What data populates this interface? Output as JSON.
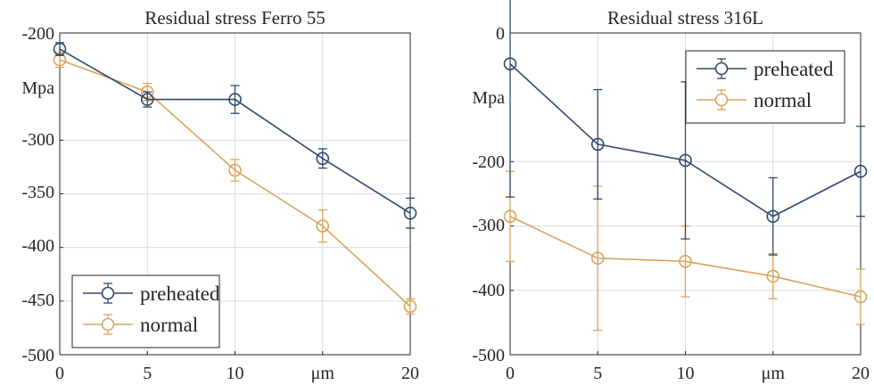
{
  "colors": {
    "preheated": "#2f4a6e",
    "normal": "#d9a35e",
    "grid": "#dcdcdc",
    "axis": "#262626"
  },
  "chart_data": [
    {
      "type": "line",
      "title": "Residual stress Ferro 55",
      "ylabel": "Mpa",
      "xlabel": "",
      "x": [
        0,
        5,
        10,
        15,
        20
      ],
      "xtick_labels": [
        "0",
        "5",
        "10",
        "μm",
        "20"
      ],
      "ylim": [
        -500,
        -200
      ],
      "yticks": [
        -200,
        -300,
        -350,
        -400,
        -450,
        -500
      ],
      "ytick_labels": [
        "-200",
        "Mpa",
        "-300",
        "-350",
        "-400",
        "-450",
        "-500"
      ],
      "grid": true,
      "legend": "bottom-left",
      "series": [
        {
          "name": "preheated",
          "values": [
            -215,
            -262,
            -262,
            -317,
            -368
          ],
          "errors": [
            6,
            7,
            13,
            9,
            14
          ]
        },
        {
          "name": "normal",
          "values": [
            -225,
            -255,
            -328,
            -380,
            -455
          ],
          "errors": [
            7,
            8,
            10,
            15,
            7
          ]
        }
      ]
    },
    {
      "type": "line",
      "title": "Residual stress 316L",
      "ylabel": "Mpa",
      "xlabel": "",
      "x": [
        0,
        5,
        10,
        15,
        20
      ],
      "xtick_labels": [
        "0",
        "5",
        "10",
        "μm",
        "20"
      ],
      "ylim": [
        -500,
        0
      ],
      "yticks": [
        0,
        -200,
        -300,
        -400,
        -500
      ],
      "ytick_labels": [
        "0",
        "Mpa",
        "-200",
        "-300",
        "-400",
        "-500"
      ],
      "grid": true,
      "legend": "top-right",
      "series": [
        {
          "name": "preheated",
          "values": [
            -48,
            -173,
            -198,
            -285,
            -215
          ],
          "errors": [
            207,
            85,
            122,
            60,
            70
          ]
        },
        {
          "name": "normal",
          "values": [
            -285,
            -350,
            -355,
            -378,
            -410
          ],
          "errors": [
            70,
            112,
            55,
            35,
            43
          ]
        }
      ]
    }
  ]
}
